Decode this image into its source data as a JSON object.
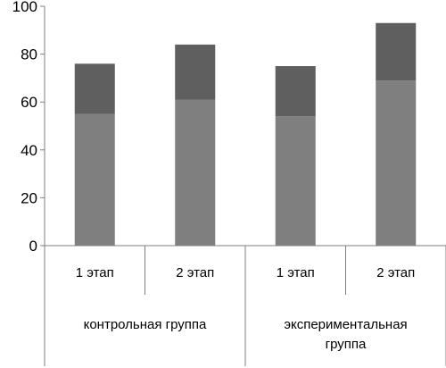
{
  "chart_data": {
    "type": "bar",
    "stacked": true,
    "title": "",
    "xlabel": "",
    "ylabel": "",
    "ylim": [
      0,
      100
    ],
    "yticks": [
      0,
      20,
      40,
      60,
      80,
      100
    ],
    "grid": false,
    "legend": "none",
    "categories": [
      "1 этап",
      "2 этап",
      "1 этап",
      "2 этап"
    ],
    "groups": [
      {
        "label": "контрольная группа",
        "categories": [
          "1 этап",
          "2 этап"
        ]
      },
      {
        "label": "экспериментальная группа",
        "label_lines": [
          "экспериментальная",
          "группа"
        ],
        "categories": [
          "1 этап",
          "2 этап"
        ]
      }
    ],
    "series": [
      {
        "values": [
          55,
          61,
          54,
          69
        ],
        "color": "#7f7f7f"
      },
      {
        "values": [
          21,
          23,
          21,
          24
        ],
        "color": "#5f5f5f"
      }
    ],
    "totals": [
      76,
      84,
      75,
      93
    ]
  }
}
